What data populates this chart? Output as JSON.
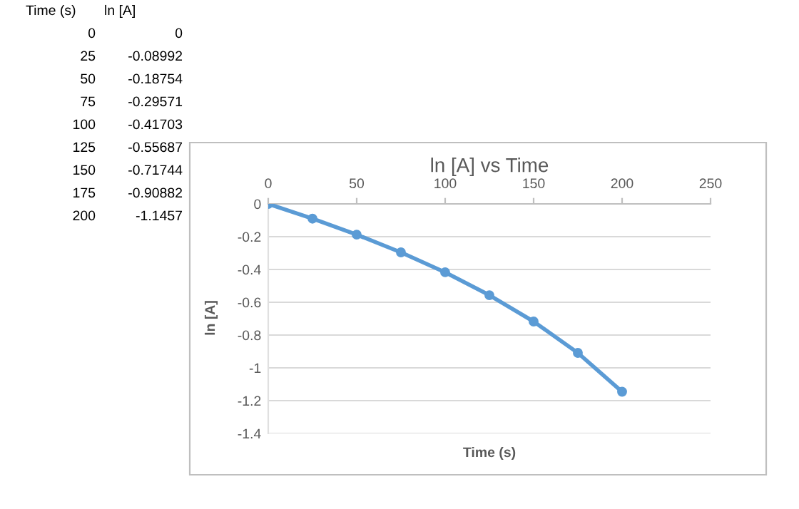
{
  "chart_data": {
    "type": "line",
    "title": "ln [A] vs Time",
    "xlabel": "Time (s)",
    "ylabel": "ln [A]",
    "x": [
      0,
      25,
      50,
      75,
      100,
      125,
      150,
      175,
      200
    ],
    "series": [
      {
        "color": "#5b9bd5",
        "values": [
          0,
          -0.08992,
          -0.18754,
          -0.29571,
          -0.41703,
          -0.55687,
          -0.71744,
          -0.90882,
          -1.1457
        ]
      }
    ],
    "xlim": [
      0,
      250
    ],
    "xticks": [
      0,
      50,
      100,
      150,
      200,
      250
    ],
    "ylim": [
      -1.4,
      0
    ],
    "yticks": [
      -1.4,
      -1.2,
      -1,
      -0.8,
      -0.6,
      -0.4,
      -0.2,
      0
    ],
    "grid": "y",
    "marker": "circle",
    "line_style": "solid",
    "annotations": [
      "Time (s)",
      "ln [A]",
      "0",
      "0",
      "25",
      "-0.08992",
      "50",
      "-0.18754",
      "75",
      "-0.29571",
      "100",
      "-0.41703",
      "125",
      "-0.55687",
      "150",
      "-0.71744",
      "175",
      "-0.90882",
      "200",
      "-1.1457"
    ]
  }
}
